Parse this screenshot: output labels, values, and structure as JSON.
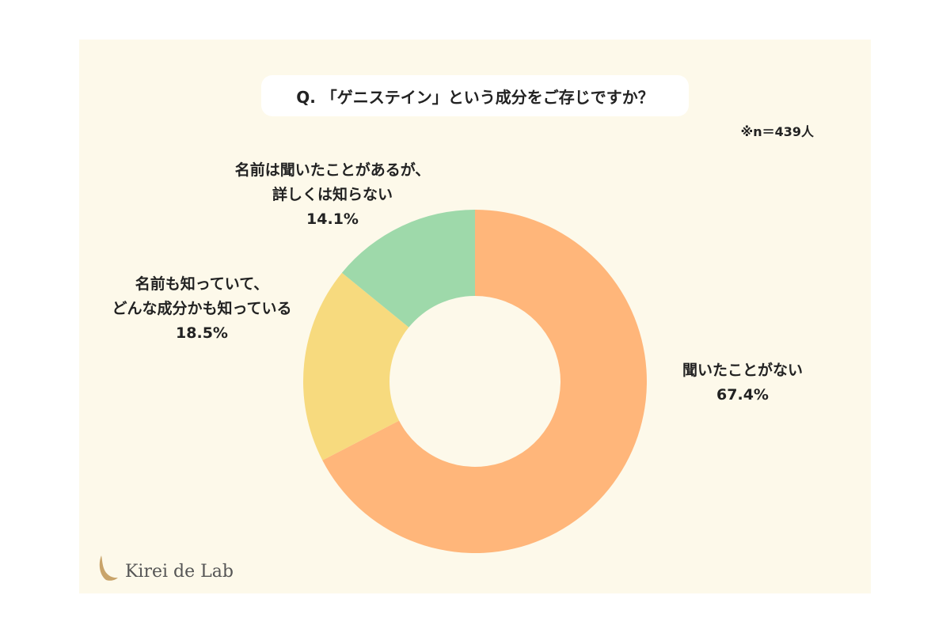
{
  "title": "Q. 「ゲニステイン」という成分をご存じですか？",
  "sample_note": "※n＝439人",
  "brand": "Kirei de Lab",
  "colors": {
    "panel_background": "#fdf9ea",
    "never_heard": "#ffb67a",
    "know_both": "#f7da7e",
    "name_only": "#9ed9aa"
  },
  "chart_data": {
    "type": "pie",
    "donut": true,
    "n": 439,
    "title": "Q. 「ゲニステイン」という成分をご存じですか？",
    "slices": [
      {
        "label_lines": [
          "聞いたことがない"
        ],
        "value": 67.4,
        "value_label": "67.4%",
        "color": "#ffb67a"
      },
      {
        "label_lines": [
          "名前も知っていて、",
          "どんな成分かも知っている"
        ],
        "value": 18.5,
        "value_label": "18.5%",
        "color": "#f7da7e"
      },
      {
        "label_lines": [
          "名前は聞いたことがあるが、",
          "詳しくは知らない"
        ],
        "value": 14.1,
        "value_label": "14.1%",
        "color": "#9ed9aa"
      }
    ]
  }
}
